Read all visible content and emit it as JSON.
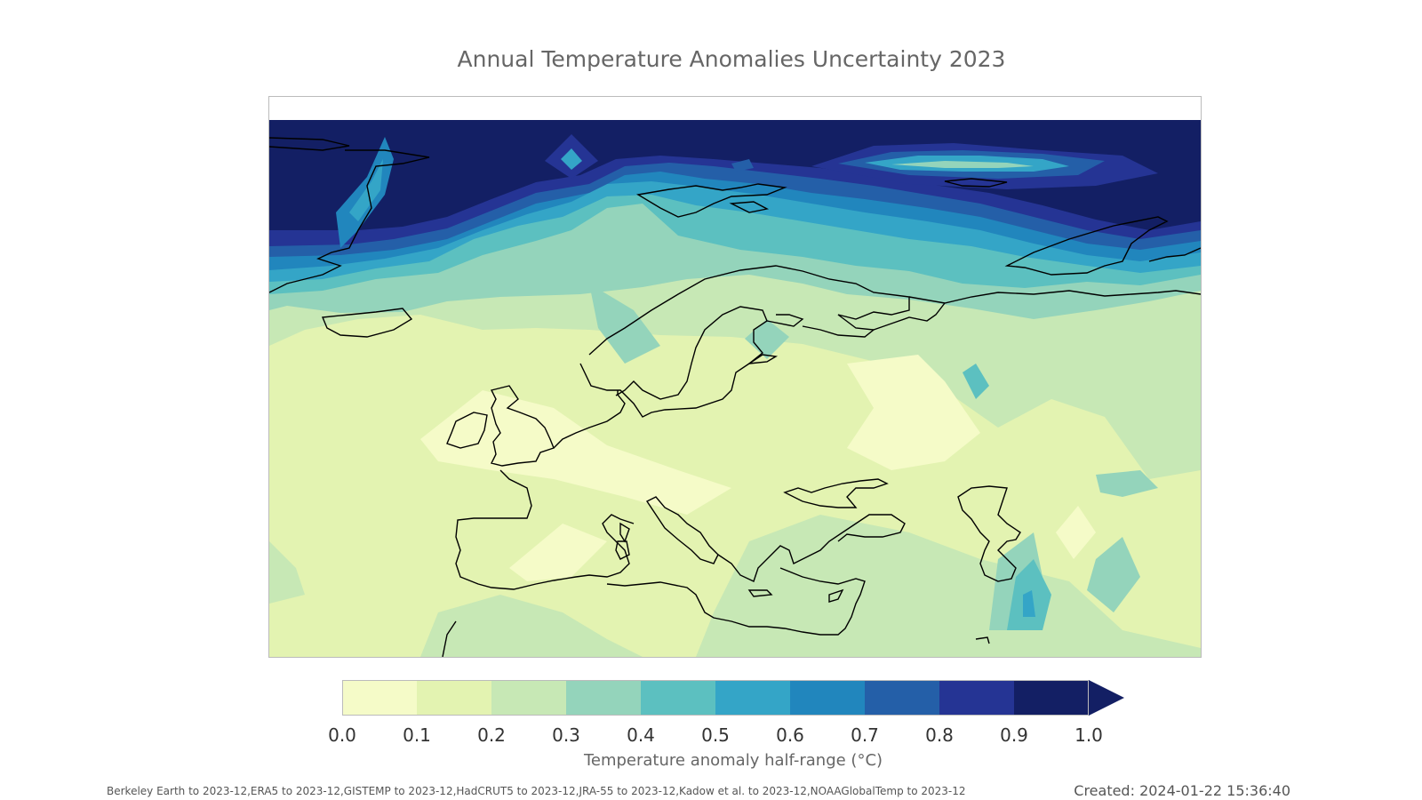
{
  "title": "Annual Temperature Anomalies Uncertainty 2023",
  "colorbar": {
    "ticks": [
      "0.0",
      "0.1",
      "0.2",
      "0.3",
      "0.4",
      "0.5",
      "0.6",
      "0.7",
      "0.8",
      "0.9",
      "1.0"
    ],
    "colors": [
      "#f5fbc8",
      "#e3f3b1",
      "#c7e8b5",
      "#94d4bb",
      "#5cc0c0",
      "#34a5c7",
      "#2186bd",
      "#245fa8",
      "#253494",
      "#131f64"
    ],
    "extend": "max",
    "label": "Temperature anomaly half-range (°C)"
  },
  "map": {
    "region": "Europe",
    "style": "filled contour",
    "coastline_color": "#000000"
  },
  "footer": {
    "sources": "Berkeley Earth to 2023-12,ERA5 to 2023-12,GISTEMP to 2023-12,HadCRUT5 to 2023-12,JRA-55 to 2023-12,Kadow et al. to 2023-12,NOAAGlobalTemp to 2023-12",
    "created": "Created: 2024-01-22 15:36:40"
  }
}
